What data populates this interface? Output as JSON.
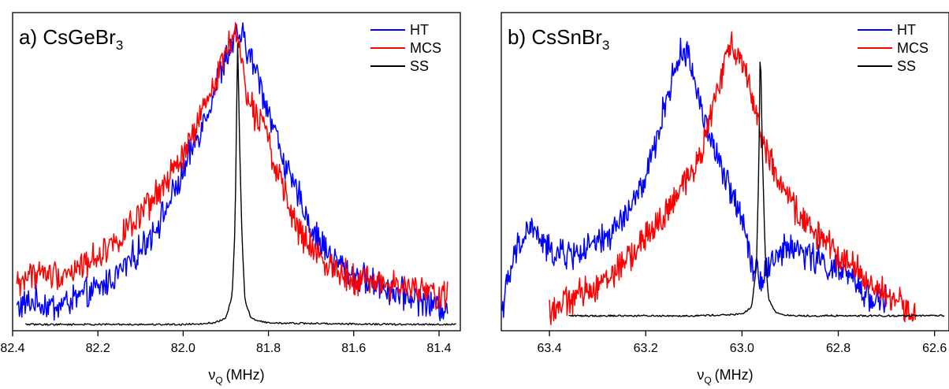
{
  "chart_data": [
    {
      "type": "line",
      "title": "a) CsGeBr",
      "title_sub": "3",
      "xlabel": "ν",
      "xlabel_sub": "Q",
      "xlabel_unit": "(MHz)",
      "ylabel": "",
      "xlim": [
        82.4,
        81.35
      ],
      "x_reversed": true,
      "xticks": [
        82.4,
        82.2,
        82.0,
        81.8,
        81.6,
        81.4
      ],
      "xtick_labels": [
        "82.4",
        "82.2",
        "82.0",
        "81.8",
        "81.6",
        "81.4"
      ],
      "y_axis_ticks": false,
      "ylim": [
        0,
        1.04
      ],
      "legend_position": "top-right",
      "series": [
        {
          "name": "HT",
          "color": "#0000ff",
          "x": [
            82.39,
            82.35,
            82.3,
            82.25,
            82.2,
            82.15,
            82.1,
            82.05,
            82.0,
            81.97,
            81.94,
            81.92,
            81.9,
            81.88,
            81.87,
            81.86,
            81.85,
            81.83,
            81.8,
            81.77,
            81.75,
            81.72,
            81.7,
            81.65,
            81.6,
            81.55,
            81.5,
            81.45,
            81.4,
            81.38
          ],
          "y": [
            0.06,
            0.08,
            0.06,
            0.09,
            0.12,
            0.18,
            0.26,
            0.37,
            0.52,
            0.64,
            0.75,
            0.84,
            0.92,
            0.98,
            1.0,
            0.99,
            0.95,
            0.88,
            0.74,
            0.6,
            0.5,
            0.42,
            0.33,
            0.23,
            0.17,
            0.14,
            0.11,
            0.09,
            0.06,
            0.07
          ]
        },
        {
          "name": "MCS",
          "color": "#ff0000",
          "x": [
            82.39,
            82.35,
            82.3,
            82.25,
            82.2,
            82.15,
            82.1,
            82.05,
            82.0,
            81.97,
            81.94,
            81.92,
            81.9,
            81.89,
            81.88,
            81.87,
            81.86,
            81.85,
            81.83,
            81.81,
            81.8,
            81.78,
            81.76,
            81.74,
            81.72,
            81.7,
            81.65,
            81.6,
            81.55,
            81.5,
            81.45,
            81.4,
            81.38
          ],
          "y": [
            0.14,
            0.18,
            0.17,
            0.19,
            0.24,
            0.3,
            0.37,
            0.47,
            0.58,
            0.68,
            0.78,
            0.87,
            0.94,
            0.99,
            1.0,
            0.97,
            0.9,
            0.8,
            0.72,
            0.73,
            0.64,
            0.52,
            0.44,
            0.36,
            0.3,
            0.26,
            0.2,
            0.16,
            0.15,
            0.13,
            0.12,
            0.1,
            0.11
          ]
        },
        {
          "name": "SS",
          "color": "#000000",
          "x": [
            82.37,
            82.0,
            81.93,
            81.9,
            81.885,
            81.878,
            81.875,
            81.872,
            81.868,
            81.862,
            81.855,
            81.84,
            81.8,
            81.5,
            81.36
          ],
          "y": [
            0.0,
            0.0,
            0.005,
            0.02,
            0.1,
            0.35,
            0.7,
            0.99,
            0.65,
            0.3,
            0.08,
            0.02,
            0.005,
            0.0,
            0.0
          ]
        }
      ]
    },
    {
      "type": "line",
      "title": "b) CsSnBr",
      "title_sub": "3",
      "xlabel": "ν",
      "xlabel_sub": "Q",
      "xlabel_unit": "(MHz)",
      "ylabel": "",
      "xlim": [
        63.5,
        62.57
      ],
      "x_reversed": true,
      "xticks": [
        63.4,
        63.2,
        63.0,
        62.8,
        62.6
      ],
      "xtick_labels": [
        "63.4",
        "63.2",
        "63.0",
        "62.8",
        "62.6"
      ],
      "y_axis_ticks": false,
      "ylim": [
        0,
        1.04
      ],
      "legend_position": "top-right",
      "series": [
        {
          "name": "HT",
          "color": "#0000ff",
          "x": [
            63.5,
            63.47,
            63.44,
            63.4,
            63.36,
            63.32,
            63.28,
            63.24,
            63.2,
            63.18,
            63.16,
            63.14,
            63.12,
            63.1,
            63.08,
            63.06,
            63.04,
            63.02,
            63.0,
            62.98,
            62.96,
            62.94,
            62.9,
            62.86,
            62.82,
            62.78,
            62.74,
            62.7
          ],
          "y": [
            0.05,
            0.25,
            0.34,
            0.25,
            0.24,
            0.26,
            0.3,
            0.38,
            0.5,
            0.62,
            0.76,
            0.88,
            0.96,
            0.86,
            0.72,
            0.62,
            0.52,
            0.45,
            0.38,
            0.22,
            0.16,
            0.22,
            0.27,
            0.24,
            0.2,
            0.17,
            0.1,
            0.08
          ]
        },
        {
          "name": "MCS",
          "color": "#ff0000",
          "x": [
            63.4,
            63.36,
            63.32,
            63.28,
            63.24,
            63.2,
            63.16,
            63.12,
            63.08,
            63.05,
            63.03,
            63.02,
            63.0,
            62.98,
            62.96,
            62.94,
            62.92,
            62.9,
            62.86,
            62.82,
            62.78,
            62.74,
            62.7,
            62.66,
            62.64
          ],
          "y": [
            0.05,
            0.08,
            0.12,
            0.16,
            0.22,
            0.3,
            0.38,
            0.48,
            0.62,
            0.82,
            0.93,
            0.97,
            0.92,
            0.8,
            0.66,
            0.56,
            0.48,
            0.42,
            0.34,
            0.27,
            0.22,
            0.15,
            0.1,
            0.06,
            0.04
          ]
        },
        {
          "name": "SS",
          "color": "#000000",
          "x": [
            63.36,
            63.1,
            63.0,
            62.98,
            62.97,
            62.965,
            62.962,
            62.958,
            62.952,
            62.945,
            62.93,
            62.9,
            62.7,
            62.58
          ],
          "y": [
            0.03,
            0.03,
            0.035,
            0.06,
            0.2,
            0.55,
            0.99,
            0.62,
            0.25,
            0.09,
            0.04,
            0.03,
            0.03,
            0.03
          ]
        }
      ]
    }
  ]
}
